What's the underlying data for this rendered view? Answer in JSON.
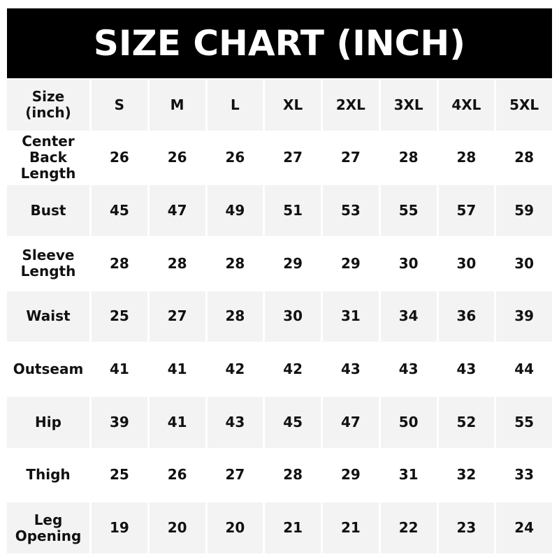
{
  "title": "SIZE CHART (INCH)",
  "header": {
    "label": "Size\n(inch)",
    "sizes": [
      "S",
      "M",
      "L",
      "XL",
      "2XL",
      "3XL",
      "4XL",
      "5XL"
    ]
  },
  "rows": [
    {
      "label": "Center\nBack\nLength",
      "values": [
        "26",
        "26",
        "26",
        "27",
        "27",
        "28",
        "28",
        "28"
      ]
    },
    {
      "label": "Bust",
      "values": [
        "45",
        "47",
        "49",
        "51",
        "53",
        "55",
        "57",
        "59"
      ]
    },
    {
      "label": "Sleeve\nLength",
      "values": [
        "28",
        "28",
        "28",
        "29",
        "29",
        "30",
        "30",
        "30"
      ]
    },
    {
      "label": "Waist",
      "values": [
        "25",
        "27",
        "28",
        "30",
        "31",
        "34",
        "36",
        "39"
      ]
    },
    {
      "label": "Outseam",
      "values": [
        "41",
        "41",
        "42",
        "42",
        "43",
        "43",
        "43",
        "44"
      ]
    },
    {
      "label": "Hip",
      "values": [
        "39",
        "41",
        "43",
        "45",
        "47",
        "50",
        "52",
        "55"
      ]
    },
    {
      "label": "Thigh",
      "values": [
        "25",
        "26",
        "27",
        "28",
        "29",
        "31",
        "32",
        "33"
      ]
    },
    {
      "label": "Leg\nOpening",
      "values": [
        "19",
        "20",
        "20",
        "21",
        "21",
        "22",
        "23",
        "24"
      ]
    }
  ],
  "colors": {
    "title_bg": "#000000",
    "stripe": "#f3f3f3"
  }
}
